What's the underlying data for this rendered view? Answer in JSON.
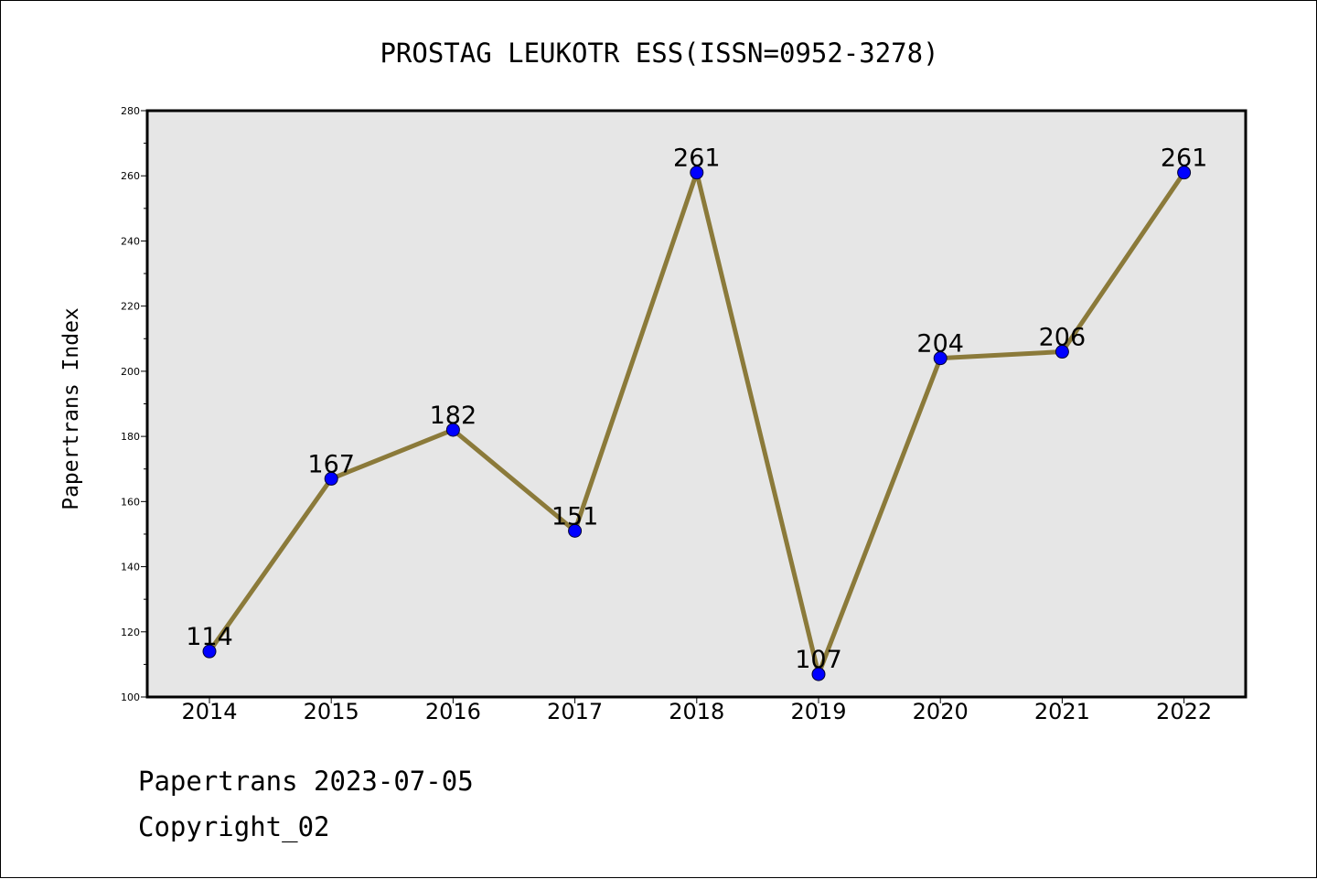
{
  "chart_data": {
    "type": "line",
    "title": "PROSTAG LEUKOTR ESS(ISSN=0952-3278)",
    "xlabel": "",
    "ylabel": "Papertrans Index",
    "categories": [
      "2014",
      "2015",
      "2016",
      "2017",
      "2018",
      "2019",
      "2020",
      "2021",
      "2022"
    ],
    "series": [
      {
        "values": [
          114,
          167,
          182,
          151,
          261,
          107,
          204,
          206,
          261
        ],
        "line_color": "#8b7a3a",
        "marker_color": "#0000ff"
      }
    ],
    "data_labels": [
      "114",
      "167",
      "182",
      "151",
      "261",
      "107",
      "204",
      "206",
      "261"
    ],
    "ylim": [
      100,
      280
    ],
    "yticks": [
      100,
      120,
      140,
      160,
      180,
      200,
      220,
      240,
      260,
      280
    ],
    "grid": false,
    "legend": "none",
    "plot_background": "#e6e6e6"
  },
  "footer": {
    "line1": "Papertrans 2023-07-05",
    "line2": "Copyright_02"
  }
}
